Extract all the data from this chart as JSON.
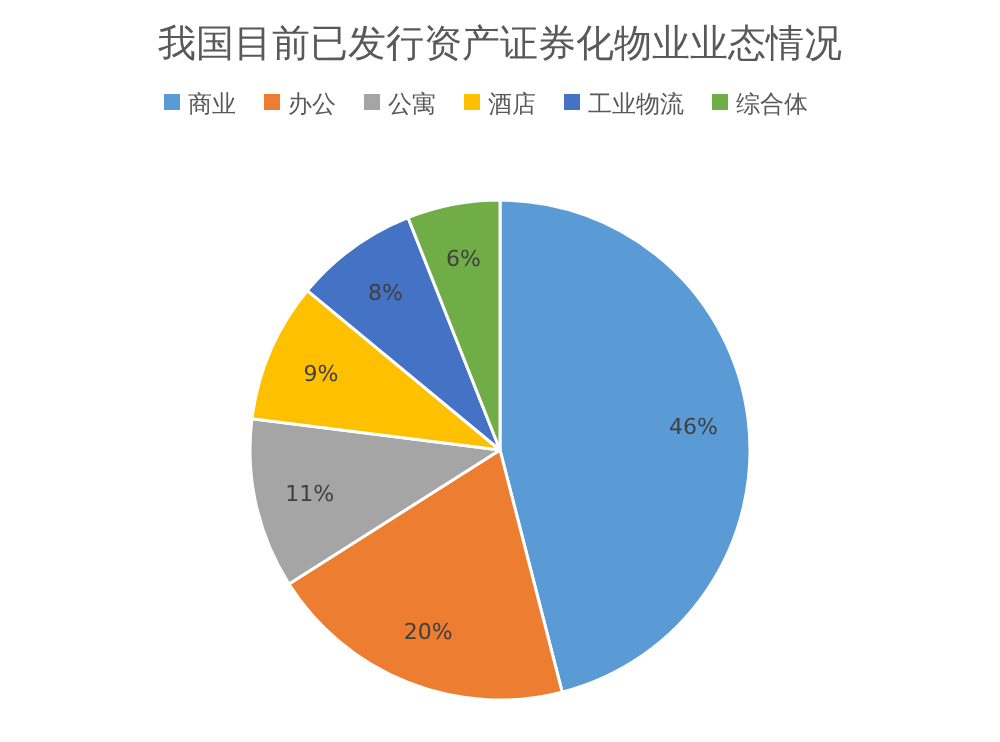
{
  "chart_data": {
    "type": "pie",
    "title": "我国目前已发行资产证券化物业业态情况",
    "categories": [
      "商业",
      "办公",
      "公寓",
      "酒店",
      "工业物流",
      "综合体"
    ],
    "values": [
      46,
      20,
      11,
      9,
      8,
      6
    ],
    "value_labels": [
      "46%",
      "20%",
      "11%",
      "9%",
      "8%",
      "6%"
    ],
    "colors": [
      "#5b9bd5",
      "#ed7d31",
      "#a5a5a5",
      "#ffc000",
      "#4472c4",
      "#70ad47"
    ],
    "legend": "top"
  }
}
